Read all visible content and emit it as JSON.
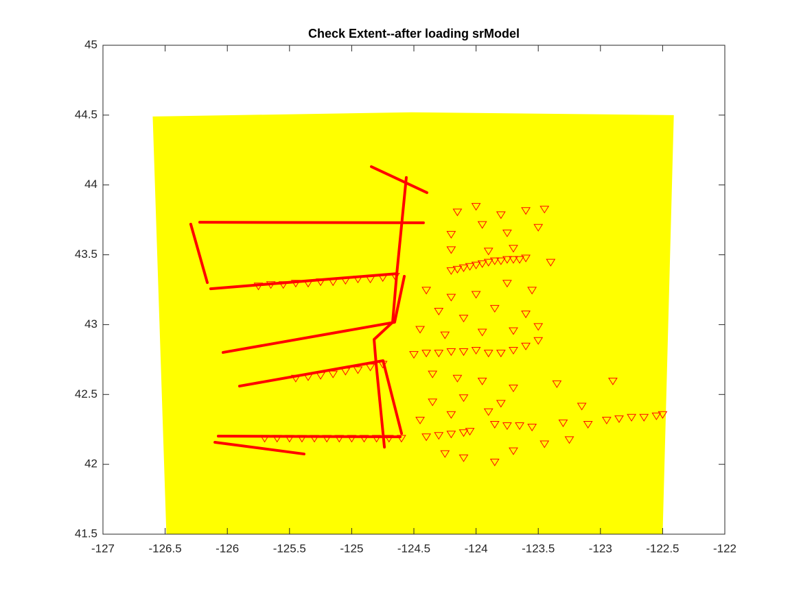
{
  "chart_data": {
    "type": "scatter",
    "title": "Check Extent--after loading srModel",
    "xlim": [
      -127,
      -122
    ],
    "ylim": [
      41.5,
      45
    ],
    "xticks": [
      -127,
      -126.5,
      -126,
      -125.5,
      -125,
      -124.5,
      -124,
      -123.5,
      -123,
      -122.5,
      -122
    ],
    "yticks": [
      41.5,
      42,
      42.5,
      43,
      43.5,
      44,
      44.5,
      45
    ],
    "box": true,
    "patch": {
      "color": "#ffff00",
      "x": [
        -126.6,
        -124.52,
        -122.41,
        -122.5,
        -126.49
      ],
      "y": [
        44.49,
        44.52,
        44.5,
        41.5,
        41.5
      ]
    },
    "series": [
      {
        "style": "line",
        "color": "#ff0000",
        "x": [
          -124.842,
          -124.395
        ],
        "y": [
          44.131,
          43.945
        ]
      },
      {
        "style": "line",
        "color": "#ff0000",
        "x": [
          -124.561,
          -124.638,
          -124.671,
          -124.82,
          -124.804,
          -124.737
        ],
        "y": [
          44.053,
          43.36,
          43.017,
          42.894,
          42.722,
          42.123
        ]
      },
      {
        "style": "line",
        "color": "#ff0000",
        "x": [
          -126.222,
          -124.423
        ],
        "y": [
          43.733,
          43.729
        ]
      },
      {
        "style": "line",
        "color": "#ff0000",
        "x": [
          -126.294,
          -126.161
        ],
        "y": [
          43.719,
          43.301
        ]
      },
      {
        "style": "line",
        "color": "#ff0000",
        "x": [
          -126.134,
          -124.638
        ],
        "y": [
          43.257,
          43.365
        ]
      },
      {
        "style": "line",
        "color": "#ff0000",
        "x": [
          -126.034,
          -124.655,
          -124.577
        ],
        "y": [
          42.801,
          43.017,
          43.346
        ]
      },
      {
        "style": "line",
        "color": "#ff0000",
        "x": [
          -125.902,
          -124.748,
          -124.599
        ],
        "y": [
          42.56,
          42.742,
          42.221
        ]
      },
      {
        "style": "line",
        "color": "#ff0000",
        "x": [
          -126.073,
          -124.61
        ],
        "y": [
          42.202,
          42.197
        ]
      },
      {
        "style": "line",
        "color": "#ff0000",
        "x": [
          -126.1,
          -125.383
        ],
        "y": [
          42.158,
          42.074
        ]
      },
      {
        "style": "markers",
        "color": "#ff0000",
        "x": [
          -125.75,
          -125.65,
          -125.55,
          -125.45,
          -125.35,
          -125.25,
          -125.15,
          -125.05,
          -124.95,
          -124.85,
          -124.75,
          -124.65,
          -125.45,
          -125.35,
          -125.25,
          -125.15,
          -125.05,
          -124.95,
          -124.85,
          -124.75,
          -125.7,
          -125.6,
          -125.5,
          -125.4,
          -125.3,
          -125.2,
          -125.1,
          -125.0,
          -124.9,
          -124.8,
          -124.7,
          -124.6,
          -124.2,
          -124.15,
          -124.1,
          -124.05,
          -124.0,
          -123.95,
          -123.9,
          -123.85,
          -123.8,
          -123.75,
          -123.7,
          -123.65,
          -123.6,
          -124.5,
          -124.4,
          -124.3,
          -124.2,
          -124.1,
          -124.0,
          -123.9,
          -123.8,
          -123.7,
          -123.6,
          -123.5,
          -123.85,
          -123.75,
          -123.65,
          -123.55,
          -123.3,
          -123.1,
          -122.95,
          -122.85,
          -122.75,
          -122.65,
          -122.55,
          -122.5,
          -124.4,
          -124.3,
          -124.2,
          -124.1,
          -124.05,
          -124.15,
          -124.0,
          -123.8,
          -123.6,
          -123.45,
          -124.2,
          -123.95,
          -123.75,
          -123.5,
          -124.2,
          -123.9,
          -123.7,
          -123.4,
          -124.4,
          -124.2,
          -124.0,
          -123.75,
          -123.55,
          -124.3,
          -124.1,
          -123.85,
          -123.6,
          -123.5,
          -124.45,
          -124.25,
          -123.95,
          -123.7,
          -124.35,
          -124.15,
          -123.95,
          -123.7,
          -123.35,
          -122.9,
          -123.15,
          -124.35,
          -124.1,
          -123.8,
          -124.45,
          -124.2,
          -123.9,
          -124.25,
          -124.1,
          -123.85,
          -123.7,
          -123.45,
          -123.25
        ],
        "y": [
          43.28,
          43.29,
          43.29,
          43.3,
          43.3,
          43.31,
          43.31,
          43.32,
          43.33,
          43.33,
          43.34,
          43.35,
          42.62,
          42.63,
          42.64,
          42.65,
          42.67,
          42.68,
          42.7,
          42.72,
          42.19,
          42.19,
          42.19,
          42.19,
          42.19,
          42.19,
          42.19,
          42.19,
          42.19,
          42.19,
          42.19,
          42.19,
          43.39,
          43.4,
          43.41,
          43.42,
          43.43,
          43.44,
          43.45,
          43.46,
          43.46,
          43.47,
          43.47,
          43.47,
          43.48,
          42.79,
          42.8,
          42.8,
          42.81,
          42.81,
          42.82,
          42.8,
          42.8,
          42.82,
          42.85,
          42.89,
          42.29,
          42.28,
          42.28,
          42.27,
          42.3,
          42.29,
          42.32,
          42.33,
          42.34,
          42.34,
          42.35,
          42.36,
          42.2,
          42.21,
          42.22,
          42.23,
          42.24,
          43.81,
          43.85,
          43.79,
          43.82,
          43.83,
          43.65,
          43.72,
          43.66,
          43.7,
          43.54,
          43.53,
          43.55,
          43.45,
          43.25,
          43.2,
          43.22,
          43.3,
          43.25,
          43.1,
          43.05,
          43.12,
          43.08,
          42.99,
          42.97,
          42.93,
          42.95,
          42.96,
          42.65,
          42.62,
          42.6,
          42.55,
          42.58,
          42.6,
          42.42,
          42.45,
          42.48,
          42.44,
          42.32,
          42.36,
          42.38,
          42.08,
          42.05,
          42.02,
          42.1,
          42.15,
          42.18
        ]
      }
    ]
  }
}
